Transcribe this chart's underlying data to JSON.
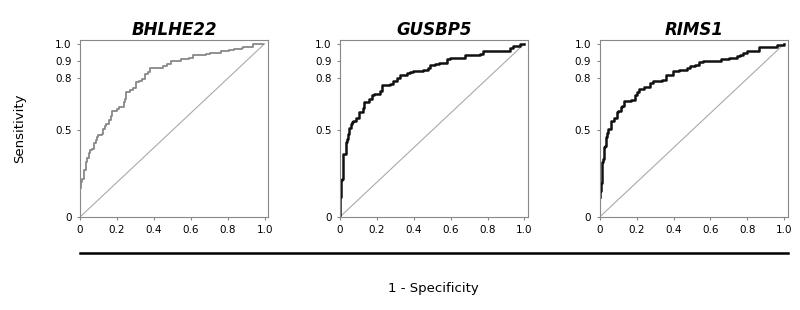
{
  "titles": [
    "BHLHE22",
    "GUSBP5",
    "RIMS1"
  ],
  "curve_colors": [
    "#888888",
    "#111111",
    "#111111"
  ],
  "curve_linewidths": [
    1.3,
    1.8,
    1.8
  ],
  "diagonal_color": "#aaaaaa",
  "diagonal_linewidth": 0.8,
  "xticks": [
    0,
    0.2,
    0.4,
    0.6,
    0.8,
    1.0
  ],
  "xtick_labels": [
    "0",
    "0.2",
    "0.4",
    "0.6",
    "0.8",
    "1.0"
  ],
  "yticks": [
    0,
    0.5,
    0.8,
    0.9,
    1.0
  ],
  "ytick_labels": [
    "0",
    "0.5",
    "0.8",
    "0.9",
    "1.0"
  ],
  "xlabel_shared": "1 - Specificity",
  "ylabel_shared": "Sensitivity",
  "ylim": [
    0,
    1.02
  ],
  "xlim": [
    0,
    1.02
  ],
  "background_color": "#ffffff",
  "spine_color": "#888888",
  "tick_fontsize": 7.5,
  "title_fontsize": 12,
  "roc_shapes": [
    "bhlhe22",
    "gusbp5",
    "rims1"
  ]
}
